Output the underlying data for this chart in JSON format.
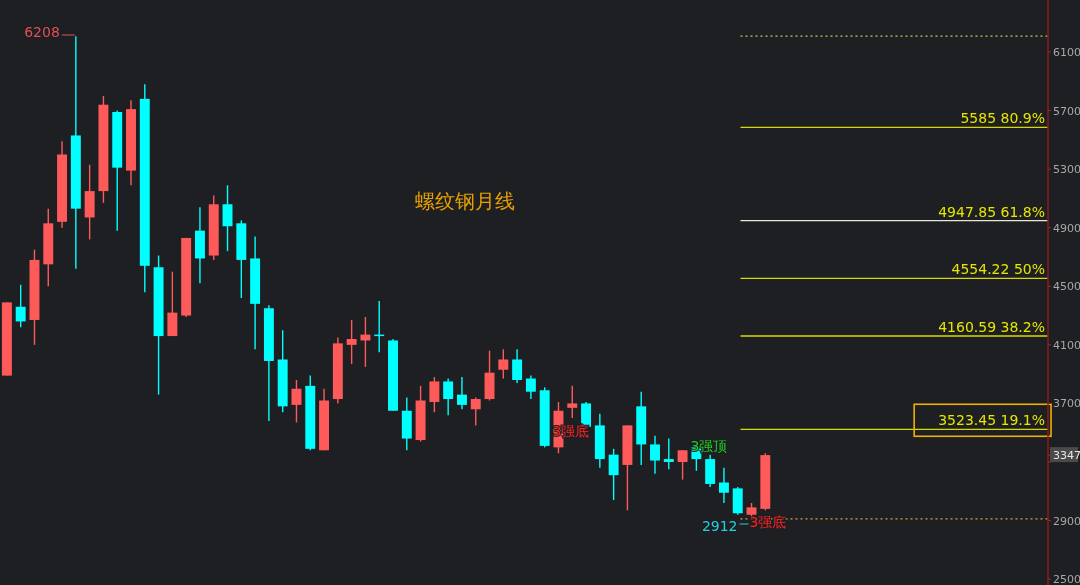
{
  "chart_data": {
    "type": "candlestick",
    "title": "螺纹钢月线",
    "categories": [
      null,
      null,
      null,
      null,
      null,
      null,
      null,
      null,
      null,
      null,
      null,
      null,
      null,
      null,
      null,
      null,
      null,
      null,
      null,
      null,
      null,
      null,
      null,
      null,
      null,
      null,
      null,
      null,
      null,
      null,
      null,
      null,
      null,
      null,
      null,
      null,
      null,
      null,
      null,
      null,
      null,
      null,
      null,
      null,
      null,
      null,
      null,
      null,
      null,
      null,
      null,
      null,
      null,
      null,
      null,
      null,
      null,
      null,
      null,
      null,
      null,
      null,
      null,
      null,
      null,
      null,
      null,
      null,
      null,
      null,
      null,
      null,
      null,
      null,
      null,
      null
    ],
    "ohlc": [
      [
        3890,
        4390,
        3890,
        4390
      ],
      [
        4360,
        4510,
        4220,
        4260
      ],
      [
        4270,
        4750,
        4100,
        4680
      ],
      [
        4650,
        5030,
        4500,
        4930
      ],
      [
        4940,
        5490,
        4900,
        5400
      ],
      [
        5530,
        6208,
        4620,
        5030
      ],
      [
        4970,
        5330,
        4820,
        5150
      ],
      [
        5150,
        5800,
        5070,
        5740
      ],
      [
        5690,
        5700,
        4880,
        5310
      ],
      [
        5290,
        5770,
        5190,
        5710
      ],
      [
        5780,
        5880,
        4460,
        4640
      ],
      [
        4630,
        4710,
        3760,
        4160
      ],
      [
        4160,
        4600,
        4160,
        4320
      ],
      [
        4300,
        4830,
        4290,
        4830
      ],
      [
        4880,
        5040,
        4520,
        4690
      ],
      [
        4710,
        5120,
        4680,
        5060
      ],
      [
        5060,
        5190,
        4740,
        4910
      ],
      [
        4930,
        4950,
        4420,
        4680
      ],
      [
        4690,
        4840,
        4070,
        4380
      ],
      [
        4350,
        4370,
        3580,
        3990
      ],
      [
        4000,
        4200,
        3640,
        3680
      ],
      [
        3690,
        3860,
        3570,
        3800
      ],
      [
        3820,
        3890,
        3380,
        3390
      ],
      [
        3380,
        3800,
        3380,
        3720
      ],
      [
        3730,
        4150,
        3700,
        4110
      ],
      [
        4100,
        4270,
        3970,
        4140
      ],
      [
        4130,
        4290,
        3950,
        4170
      ],
      [
        4170,
        4400,
        4050,
        4160
      ],
      [
        4130,
        4140,
        3650,
        3650
      ],
      [
        3650,
        3740,
        3380,
        3460
      ],
      [
        3450,
        3820,
        3440,
        3720
      ],
      [
        3710,
        3880,
        3640,
        3850
      ],
      [
        3850,
        3870,
        3620,
        3730
      ],
      [
        3760,
        3880,
        3660,
        3690
      ],
      [
        3660,
        3740,
        3550,
        3730
      ],
      [
        3730,
        4060,
        3720,
        3910
      ],
      [
        3930,
        4070,
        3870,
        4000
      ],
      [
        4000,
        4070,
        3840,
        3860
      ],
      [
        3870,
        3890,
        3730,
        3780
      ],
      [
        3790,
        3810,
        3400,
        3410
      ],
      [
        3400,
        3710,
        3360,
        3650
      ],
      [
        3670,
        3820,
        3600,
        3700
      ],
      [
        3700,
        3710,
        3530,
        3540
      ],
      [
        3550,
        3630,
        3260,
        3320
      ],
      [
        3350,
        3390,
        3040,
        3210
      ],
      [
        3280,
        3550,
        2970,
        3550
      ],
      [
        3680,
        3780,
        3280,
        3420
      ],
      [
        3420,
        3480,
        3220,
        3310
      ],
      [
        3320,
        3460,
        3250,
        3300
      ],
      [
        3300,
        3380,
        3180,
        3380
      ],
      [
        3400,
        3400,
        3240,
        3320
      ],
      [
        3320,
        3350,
        3130,
        3150
      ],
      [
        3160,
        3260,
        3020,
        3090
      ],
      [
        3120,
        3130,
        2940,
        2950
      ],
      [
        2940,
        3020,
        2912,
        2990
      ],
      [
        2980,
        3360,
        2970,
        3347
      ],
      null,
      null,
      null,
      null,
      null,
      null,
      null,
      null,
      null,
      null,
      null,
      null,
      null,
      null,
      null,
      null,
      null,
      null,
      null,
      null
    ],
    "colors": [
      "#ff5a5a",
      "#00ffff",
      "#ff5a5a",
      "#ff5a5a",
      "#ff5a5a",
      "#00ffff",
      "#ff5a5a",
      "#ff5a5a",
      "#00ffff",
      "#ff5a5a",
      "#00ffff",
      "#00ffff",
      "#ff5a5a",
      "#ff5a5a",
      "#00ffff",
      "#ff5a5a",
      "#00ffff",
      "#00ffff",
      "#00ffff",
      "#00ffff",
      "#00ffff",
      "#ff5a5a",
      "#00ffff",
      "#ff5a5a",
      "#ff5a5a",
      "#ff5a5a",
      "#ff5a5a",
      "#00ffff",
      "#00ffff",
      "#00ffff",
      "#ff5a5a",
      "#ff5a5a",
      "#00ffff",
      "#00ffff",
      "#ff5a5a",
      "#ff5a5a",
      "#ff5a5a",
      "#00ffff",
      "#00ffff",
      "#00ffff",
      "#ff5a5a",
      "#ff5a5a",
      "#00ffff",
      "#00ffff",
      "#00ffff",
      "#ff5a5a",
      "#00ffff",
      "#00ffff",
      "#00ffff",
      "#ff5a5a",
      "#00ffff",
      "#00ffff",
      "#00ffff",
      "#00ffff",
      "#ff5a5a",
      "#ff5a5a",
      null,
      null,
      null,
      null,
      null,
      null,
      null,
      null,
      null,
      null,
      null,
      null,
      null,
      null,
      null,
      null,
      null,
      null,
      null,
      null
    ],
    "ylim": [
      2460,
      6455
    ],
    "yticks": [
      2500,
      2900,
      {
        "value": 3300,
        "label": null
      },
      {
        "value": 3347,
        "label": "3347"
      },
      3700,
      4100,
      4500,
      4900,
      5300,
      5700,
      6100
    ],
    "ref_lines": [
      {
        "axis": "y",
        "value": 6208,
        "color": "#c8c860",
        "line_style": "dotted"
      },
      {
        "axis": "y",
        "value": 5585,
        "label": "5585 80.9%",
        "color": "#d8d800"
      },
      {
        "axis": "y",
        "value": 4947.85,
        "label": "4947.85 61.8%",
        "color": "#e8e8d0"
      },
      {
        "axis": "y",
        "value": 4554.22,
        "label": "4554.22 50%",
        "color": "#d8d800"
      },
      {
        "axis": "y",
        "value": 4160.59,
        "label": "4160.59 38.2%",
        "color": "#d8d800"
      },
      {
        "axis": "y",
        "value": 3523.45,
        "label": "3523.45 19.1%",
        "color": "#d8d800"
      },
      {
        "axis": "y",
        "value": 2912,
        "color": "#e0a040",
        "line_style": "dotted"
      }
    ],
    "annotations": [
      "6208",
      "3强底",
      "3强顶",
      "2912",
      "3强底"
    ]
  }
}
